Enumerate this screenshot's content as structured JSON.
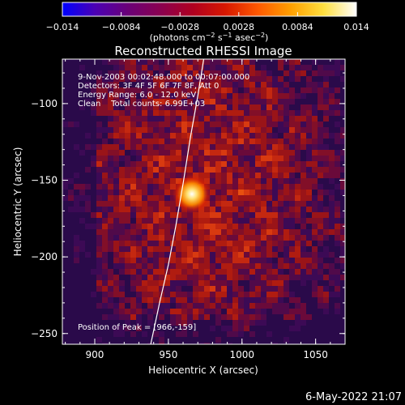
{
  "chart_data": {
    "type": "heatmap",
    "title": "Reconstructed RHESSI Image",
    "xlabel": "Heliocentric X (arcsec)",
    "ylabel": "Heliocentric Y (arcsec)",
    "xlim": [
      878,
      1070
    ],
    "ylim": [
      -257,
      -71
    ],
    "xticks": [
      900,
      950,
      1000,
      1050
    ],
    "yticks": [
      -100,
      -150,
      -200,
      -250
    ],
    "xtick_labels": [
      "900",
      "950",
      "1000",
      "1050"
    ],
    "ytick_labels": [
      "−100",
      "−150",
      "−200",
      "−250"
    ],
    "colorbar": {
      "range": [
        -0.014,
        0.014
      ],
      "ticks": [
        -0.014,
        -0.0084,
        -0.0028,
        0.0028,
        0.0084,
        0.014
      ],
      "tick_labels": [
        "−0.014",
        "−0.0084",
        "−0.0028",
        "0.0028",
        "0.0084",
        "0.014"
      ],
      "units_label": "(photons cm",
      "units_sup1": "−2",
      "units_mid": " s",
      "units_sup2": "−1",
      "units_mid2": " asec",
      "units_sup3": "−2",
      "units_end": ")",
      "colormap": [
        "#0000ff",
        "#4b00b4",
        "#6a0078",
        "#8a0050",
        "#b00020",
        "#d81800",
        "#ff5a00",
        "#ffa000",
        "#ffe040",
        "#ffffff"
      ]
    },
    "peak": {
      "x": 966,
      "y": -159,
      "value": 0.014
    },
    "limb_curve": [
      [
        938,
        -257
      ],
      [
        944,
        -230
      ],
      [
        950,
        -205
      ],
      [
        955,
        -180
      ],
      [
        960,
        -152
      ],
      [
        965,
        -122
      ],
      [
        970,
        -95
      ],
      [
        974,
        -71
      ]
    ],
    "annotations": [
      "9-Nov-2003 00:02:48.000 to 00:07:00.000",
      "Detectors: 3F 4F 5F 6F 7F 8F, Att 0",
      "Energy Range: 6.0 - 12.0 keV",
      "Clean    Total counts: 6.99E+03",
      "Position of Peak = [966,-159]"
    ]
  },
  "footer": {
    "date": "6-May-2022 21:07"
  },
  "colors": {
    "background": "#000000",
    "text": "#ffffff"
  }
}
